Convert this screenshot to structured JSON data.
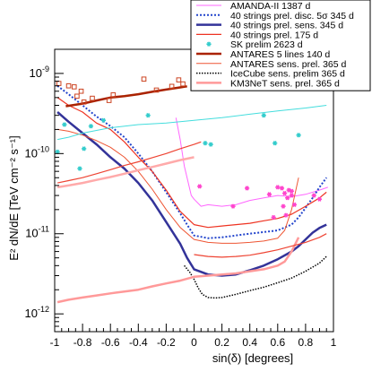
{
  "chart_data": {
    "type": "line",
    "title": "",
    "xlabel": "sin(δ) [degrees]",
    "ylabel": "E² dN/dE [TeV cm⁻² s⁻¹]",
    "xlim": [
      -1,
      1
    ],
    "ylim": [
      6e-13,
      2e-09
    ],
    "yscale": "log",
    "grid": false,
    "legend_position": "top-right",
    "x_ticks": [
      {
        "v": -1,
        "label": "-1"
      },
      {
        "v": -0.8,
        "label": "-0.8"
      },
      {
        "v": -0.6,
        "label": "-0.6"
      },
      {
        "v": -0.4,
        "label": "-0.4"
      },
      {
        "v": -0.2,
        "label": "-0.2"
      },
      {
        "v": 0,
        "label": "0"
      },
      {
        "v": 0.2,
        "label": "0.2"
      },
      {
        "v": 0.4,
        "label": "0.4"
      },
      {
        "v": 0.6,
        "label": "0.6"
      },
      {
        "v": 0.8,
        "label": "0.8"
      },
      {
        "v": 1,
        "label": "1"
      }
    ],
    "y_ticks": [
      {
        "v": 1e-12,
        "base": "10",
        "exp": "-12"
      },
      {
        "v": 1e-11,
        "base": "10",
        "exp": "-11"
      },
      {
        "v": 1e-10,
        "base": "10",
        "exp": "-10"
      },
      {
        "v": 1e-09,
        "base": "10",
        "exp": "-9"
      }
    ],
    "series": [
      {
        "name": "AMANDA-II 1387 d",
        "style": "line",
        "color": "#ff66ff",
        "width": 1,
        "dash": "",
        "x": [
          -0.13,
          -0.1,
          -0.07,
          -0.05,
          -0.02,
          0.0,
          0.05,
          0.1,
          0.2,
          0.3,
          0.4,
          0.5,
          0.6,
          0.7,
          0.8,
          0.9,
          0.96
        ],
        "y": [
          2.8e-10,
          1.5e-10,
          7e-11,
          5e-11,
          3e-11,
          2.7e-11,
          2.2e-11,
          2.3e-11,
          2.2e-11,
          2.3e-11,
          2.6e-11,
          2.8e-11,
          3e-11,
          2.9e-11,
          3.1e-11,
          3.5e-11,
          3.8e-11
        ]
      },
      {
        "name": "40 strings prel. disc. 5σ 345 d",
        "style": "line",
        "color": "#2244cc",
        "width": 2,
        "dash": "2,2",
        "x": [
          -0.98,
          -0.9,
          -0.8,
          -0.7,
          -0.6,
          -0.5,
          -0.4,
          -0.3,
          -0.2,
          -0.1,
          -0.05,
          0.0,
          0.1,
          0.2,
          0.3,
          0.4,
          0.5,
          0.6,
          0.7,
          0.75,
          0.8,
          0.85,
          0.9,
          0.95
        ],
        "y": [
          7e-10,
          5.5e-10,
          4e-10,
          2.9e-10,
          2.2e-10,
          1.6e-10,
          1e-10,
          6e-11,
          3.3e-11,
          1.8e-11,
          1.3e-11,
          9.5e-12,
          8.8e-12,
          9e-12,
          9.5e-12,
          1e-11,
          1.05e-11,
          1.1e-11,
          1.3e-11,
          1.6e-11,
          2.1e-11,
          2.8e-11,
          3.8e-11,
          5e-11
        ]
      },
      {
        "name": "40 strings prel. sens. 345 d",
        "style": "line",
        "color": "#333399",
        "width": 2.5,
        "dash": "",
        "x": [
          -0.98,
          -0.9,
          -0.8,
          -0.7,
          -0.6,
          -0.5,
          -0.4,
          -0.3,
          -0.2,
          -0.1,
          -0.05,
          0.0,
          0.1,
          0.2,
          0.3,
          0.4,
          0.5,
          0.6,
          0.7,
          0.75,
          0.8,
          0.85,
          0.9,
          0.95
        ],
        "y": [
          3.3e-10,
          2.5e-10,
          1.8e-10,
          1.3e-10,
          9e-11,
          6.5e-11,
          4.3e-11,
          2.6e-11,
          1.4e-11,
          7.5e-12,
          5e-12,
          3.6e-12,
          3.1e-12,
          3e-12,
          3.1e-12,
          3.5e-12,
          4e-12,
          4.8e-12,
          6e-12,
          7e-12,
          8.5e-12,
          1.03e-11,
          1.18e-11,
          1.3e-11
        ]
      },
      {
        "name": "40 strings prel. 175 d",
        "style": "line",
        "color": "#ee3322",
        "width": 1.2,
        "dash": "",
        "x": [
          -0.98,
          -0.9,
          -0.8,
          -0.7,
          -0.6,
          -0.5,
          -0.4,
          -0.3,
          -0.2,
          -0.1,
          0.0,
          0.1,
          0.2,
          0.3,
          0.4,
          0.5,
          0.6,
          0.7,
          0.8,
          0.9,
          0.95
        ],
        "y": [
          5e-10,
          4e-10,
          3.3e-10,
          2.4e-10,
          2e-10,
          1.4e-10,
          9e-11,
          6e-11,
          3.5e-11,
          1.9e-11,
          1.3e-11,
          1.2e-11,
          1.25e-11,
          1.3e-11,
          1.35e-11,
          1.45e-11,
          1.55e-11,
          1.75e-11,
          2.2e-11,
          2.8e-11,
          3.3e-11
        ]
      },
      {
        "name": "SK prelim 2623 d",
        "style": "markers",
        "marker": "star",
        "color": "#33cccc",
        "x": [
          -0.98,
          -0.93,
          -0.82,
          -0.79,
          -0.74,
          -0.65,
          -0.33,
          0.08,
          0.12,
          0.5,
          0.58,
          0.75
        ],
        "y": [
          1.05e-10,
          2.3e-10,
          6.5e-11,
          1.15e-10,
          2.2e-10,
          2.6e-10,
          3e-10,
          1.35e-10,
          1.3e-10,
          3e-10,
          1.35e-10,
          1.7e-10
        ]
      },
      {
        "name": "ANTARES 5 lines 140 d",
        "style": "line",
        "color": "#aa2200",
        "width": 2.5,
        "dash": "",
        "x": [
          -0.92,
          -0.8,
          -0.7,
          -0.6,
          -0.5,
          -0.4,
          -0.3,
          -0.2,
          -0.1,
          -0.05
        ],
        "y": [
          3.9e-10,
          4.2e-10,
          4.6e-10,
          5e-10,
          5.2e-10,
          5.5e-10,
          5.9e-10,
          6.3e-10,
          6.7e-10,
          6.9e-10
        ]
      },
      {
        "name": "ANTARES sens. prel. 365 d",
        "style": "line",
        "color": "#ee5533",
        "width": 1,
        "dash": "",
        "x": [
          -0.98,
          -0.9,
          -0.8,
          -0.7,
          -0.6,
          -0.5,
          -0.4,
          -0.3,
          -0.2,
          -0.1,
          0.0,
          0.1,
          0.2,
          0.3,
          0.4,
          0.5,
          0.6,
          0.65,
          0.7,
          0.75
        ],
        "y": [
          2e-10,
          1.9e-10,
          1.7e-10,
          1.45e-10,
          1.2e-10,
          9e-11,
          6e-11,
          3.6e-11,
          2e-11,
          1.2e-11,
          8.5e-12,
          7.8e-12,
          7.6e-12,
          7.6e-12,
          7.8e-12,
          8.1e-12,
          8.8e-12,
          1.1e-11,
          2e-11,
          5e-11
        ]
      },
      {
        "name": "IceCube sens. prelim 365 d",
        "style": "line",
        "color": "#000000",
        "width": 1.5,
        "dash": "1.5,1.5",
        "x": [
          -0.07,
          -0.03,
          0.0,
          0.03,
          0.06,
          0.1,
          0.15,
          0.2,
          0.3,
          0.4,
          0.5,
          0.6,
          0.7,
          0.8,
          0.9,
          0.95
        ],
        "y": [
          4e-12,
          3.3e-12,
          2.7e-12,
          2.1e-12,
          1.75e-12,
          1.6e-12,
          1.58e-12,
          1.6e-12,
          1.75e-12,
          1.95e-12,
          2.15e-12,
          2.45e-12,
          2.8e-12,
          3.4e-12,
          4.3e-12,
          5.2e-12
        ]
      },
      {
        "name": "KM3NeT sens. prel. 365 d",
        "style": "line",
        "color": "#ff9999",
        "width": 2.5,
        "dash": "",
        "x": [
          -0.98,
          -0.9,
          -0.8,
          -0.7,
          -0.6,
          -0.5,
          -0.4,
          -0.3,
          -0.2,
          -0.1,
          0.0,
          0.1,
          0.2,
          0.3,
          0.4,
          0.5,
          0.6,
          0.65,
          0.7,
          0.75
        ],
        "y": [
          1.4e-12,
          1.5e-12,
          1.6e-12,
          1.7e-12,
          1.8e-12,
          1.9e-12,
          2e-12,
          2.2e-12,
          2.4e-12,
          2.6e-12,
          2.9e-12,
          3e-12,
          3.1e-12,
          3.2e-12,
          3.4e-12,
          3.6e-12,
          4e-12,
          4.5e-12,
          6e-12,
          9e-12
        ]
      },
      {
        "name": "",
        "style": "line",
        "color": "#44dddd",
        "width": 1,
        "dash": "",
        "x": [
          -0.98,
          -0.9,
          -0.8,
          -0.6,
          -0.4,
          -0.2,
          0.0,
          0.2,
          0.4,
          0.6,
          0.8,
          0.95
        ],
        "y": [
          1.5e-10,
          1.6e-10,
          1.8e-10,
          2.1e-10,
          2.3e-10,
          2.4e-10,
          2.6e-10,
          2.8e-10,
          3.1e-10,
          3.4e-10,
          3.7e-10,
          4e-10
        ]
      },
      {
        "name": "",
        "style": "line",
        "color": "#ee4433",
        "width": 1.2,
        "dash": "",
        "x": [
          -0.98,
          -0.9,
          -0.8,
          -0.7,
          -0.6,
          -0.5,
          -0.4,
          -0.3,
          -0.2,
          -0.1,
          0.0,
          0.05
        ],
        "y": [
          4.3e-11,
          4.6e-11,
          5e-11,
          5.6e-11,
          6.3e-11,
          7.1e-11,
          7.9e-11,
          8.9e-11,
          1e-10,
          1.15e-10,
          1.3e-10,
          1.4e-10
        ]
      },
      {
        "name": "",
        "style": "line",
        "color": "#ee4433",
        "width": 1.2,
        "dash": "",
        "x": [
          0.0,
          0.1,
          0.2,
          0.3,
          0.4,
          0.5,
          0.6,
          0.7,
          0.8,
          0.9,
          0.95
        ],
        "y": [
          5.5e-12,
          5.2e-12,
          5.1e-12,
          5.2e-12,
          5.4e-12,
          5.8e-12,
          6.3e-12,
          7e-12,
          7.8e-12,
          9e-12,
          1e-11
        ]
      },
      {
        "name": "",
        "style": "line",
        "color": "#ffaaaa",
        "width": 2.5,
        "dash": "",
        "x": [
          -0.98,
          -0.9,
          -0.8,
          -0.7,
          -0.6,
          -0.5,
          -0.4,
          -0.3,
          -0.2,
          -0.1,
          0.0
        ],
        "y": [
          3.8e-11,
          4e-11,
          4.3e-11,
          4.7e-11,
          5.1e-11,
          5.6e-11,
          6.2e-11,
          6.8e-11,
          7.5e-11,
          8.3e-11,
          9e-11
        ]
      },
      {
        "name": "",
        "style": "markers",
        "marker": "square",
        "color": "#cc4422",
        "x": [
          -0.97,
          -0.9,
          -0.86,
          -0.84,
          -0.81,
          -0.79,
          -0.73,
          -0.61,
          -0.58,
          -0.36,
          -0.27,
          -0.16,
          -0.11,
          -0.08,
          0.02
        ],
        "y": [
          7.5e-10,
          7e-10,
          6.8e-10,
          5.2e-10,
          6e-10,
          4.4e-10,
          4.9e-10,
          4.6e-10,
          5.4e-10,
          8.5e-10,
          6.2e-10,
          6.9e-10,
          8.3e-10,
          7.4e-10,
          7.8e-10
        ]
      },
      {
        "name": "",
        "style": "markers",
        "marker": "star",
        "color": "#ff44cc",
        "x": [
          0.04,
          0.28,
          0.38,
          0.54,
          0.57,
          0.6,
          0.63,
          0.65,
          0.67,
          0.68,
          0.7,
          0.7,
          0.72,
          0.64,
          0.66,
          0.86,
          0.9
        ],
        "y": [
          3.9e-11,
          2.2e-11,
          3.7e-11,
          3.1e-11,
          1.6e-11,
          3.8e-11,
          3.7e-11,
          3.2e-11,
          2.8e-11,
          3.5e-11,
          3e-11,
          3.4e-11,
          2.3e-11,
          2.2e-11,
          1.7e-11,
          3e-11,
          2.7e-11
        ]
      }
    ]
  }
}
